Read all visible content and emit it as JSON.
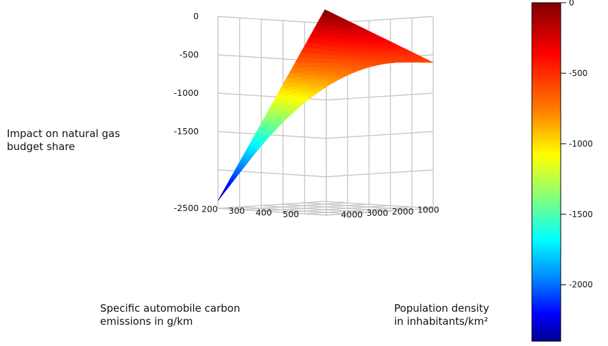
{
  "chart_data": {
    "type": "surface",
    "zlabel": "Impact on natural gas budget share",
    "xlabel": "Specific automobile carbon emissions in g/km",
    "ylabel": "Population density in inhabitants/km²",
    "x_ticks": [
      200,
      300,
      400,
      500
    ],
    "y_ticks": [
      1000,
      2000,
      3000,
      4000
    ],
    "z_ticks": [
      "0",
      "-500",
      "-1000",
      "-1500",
      "-2500"
    ],
    "xlim": [
      150,
      550
    ],
    "ylim": [
      0,
      4200
    ],
    "zlim": [
      -2500,
      0
    ],
    "colorbar": {
      "ticks": [
        "0",
        "-500",
        "-1000",
        "-1500",
        "-2000"
      ],
      "tick_values": [
        0,
        -500,
        -1000,
        -1500,
        -2000
      ],
      "range": [
        -2400,
        0
      ],
      "colormap": "jet"
    },
    "surface_corner_values": [
      {
        "x": 150,
        "y": 0,
        "z": 0
      },
      {
        "x": 550,
        "y": 0,
        "z": -600
      },
      {
        "x": 150,
        "y": 4200,
        "z": -2400
      },
      {
        "x": 550,
        "y": 4200,
        "z": -500
      }
    ],
    "grid": true
  }
}
